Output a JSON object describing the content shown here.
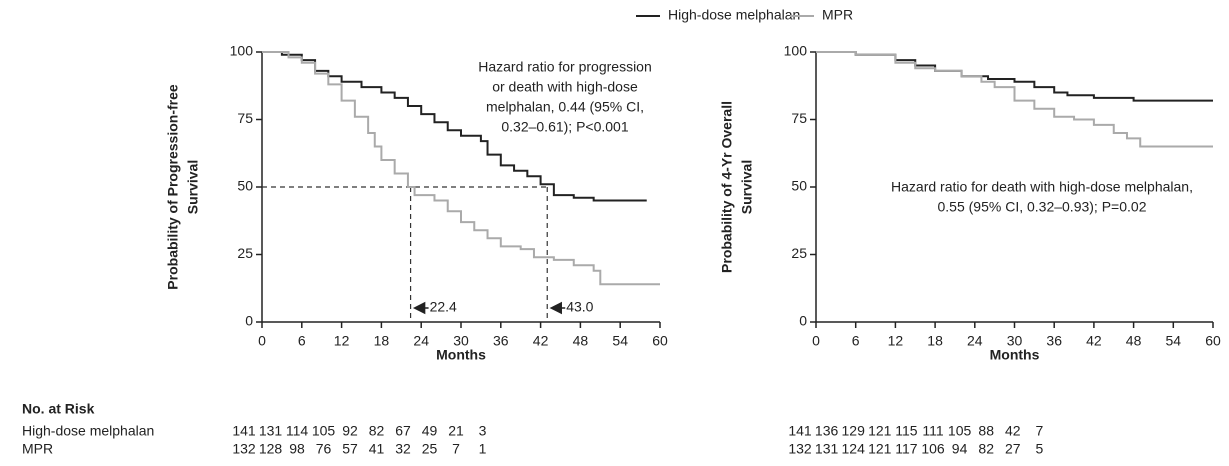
{
  "legend_position": "top",
  "risk_table_title": "No. at Risk",
  "chart_data": [
    {
      "type": "line",
      "step": true,
      "xlabel": "Months",
      "ylabel": [
        "Probability of Progression-free",
        "Survival"
      ],
      "xlim": [
        0,
        60
      ],
      "ylim": [
        0,
        100
      ],
      "xticks": [
        0,
        6,
        12,
        18,
        24,
        30,
        36,
        42,
        48,
        54,
        60
      ],
      "yticks": [
        0,
        25,
        50,
        75,
        100
      ],
      "annotation": [
        "Hazard ratio for progression",
        "or death with high-dose",
        "melphalan, 0.44 (95% CI,",
        "0.32–0.61); P<0.001"
      ],
      "reference_y": 50,
      "medians": [
        22.4,
        {
          "value": 43,
          "label": "43.0"
        }
      ],
      "series": [
        {
          "name": "High-dose melphalan",
          "color": "#222222",
          "x": [
            0,
            3,
            6,
            8,
            10,
            12,
            15,
            18,
            20,
            22,
            24,
            26,
            28,
            30,
            33,
            34,
            36,
            38,
            40,
            42,
            44,
            47,
            50,
            58
          ],
          "values": [
            100,
            99,
            97,
            93,
            91,
            89,
            87,
            85,
            83,
            80,
            77,
            74,
            71,
            69,
            67,
            62,
            58,
            56,
            54,
            51,
            47,
            46,
            45,
            45
          ],
          "at_risk": [
            141,
            131,
            114,
            105,
            92,
            82,
            67,
            49,
            21,
            3
          ]
        },
        {
          "name": "MPR",
          "color": "#aaaaaa",
          "x": [
            0,
            4,
            6,
            8,
            10,
            12,
            14,
            16,
            17,
            18,
            20,
            22,
            23,
            26,
            28,
            30,
            32,
            34,
            36,
            39,
            41,
            44,
            47,
            50,
            51,
            60
          ],
          "values": [
            100,
            98,
            96,
            92,
            88,
            82,
            76,
            70,
            65,
            60,
            55,
            50,
            47,
            45,
            41,
            37,
            34,
            31,
            28,
            27,
            24,
            23,
            21,
            19,
            14,
            14
          ],
          "at_risk": [
            132,
            128,
            98,
            76,
            57,
            41,
            32,
            25,
            7,
            1
          ]
        }
      ]
    },
    {
      "type": "line",
      "step": true,
      "xlabel": "Months",
      "ylabel": [
        "Probability of 4-Yr Overall",
        "Survival"
      ],
      "xlim": [
        0,
        60
      ],
      "ylim": [
        0,
        100
      ],
      "xticks": [
        0,
        6,
        12,
        18,
        24,
        30,
        36,
        42,
        48,
        54,
        60
      ],
      "yticks": [
        0,
        25,
        50,
        75,
        100
      ],
      "annotation": [
        "Hazard ratio for death with high-dose melphalan,",
        "0.55 (95% CI, 0.32–0.93); P=0.02"
      ],
      "series": [
        {
          "name": "High-dose melphalan",
          "color": "#222222",
          "x": [
            0,
            6,
            12,
            15,
            18,
            22,
            26,
            30,
            33,
            36,
            38,
            42,
            48,
            60
          ],
          "values": [
            100,
            99,
            97,
            95,
            93,
            91,
            90,
            89,
            87,
            85,
            84,
            83,
            82,
            82
          ],
          "at_risk": [
            141,
            136,
            129,
            121,
            115,
            111,
            105,
            88,
            42,
            7
          ]
        },
        {
          "name": "MPR",
          "color": "#aaaaaa",
          "x": [
            0,
            6,
            12,
            15,
            18,
            22,
            25,
            27,
            30,
            33,
            36,
            39,
            42,
            45,
            47,
            49,
            60
          ],
          "values": [
            100,
            99,
            96,
            94,
            93,
            91,
            89,
            87,
            82,
            79,
            76,
            75,
            73,
            70,
            68,
            65,
            65
          ],
          "at_risk": [
            132,
            131,
            124,
            121,
            117,
            106,
            94,
            82,
            27,
            5
          ]
        }
      ]
    }
  ]
}
